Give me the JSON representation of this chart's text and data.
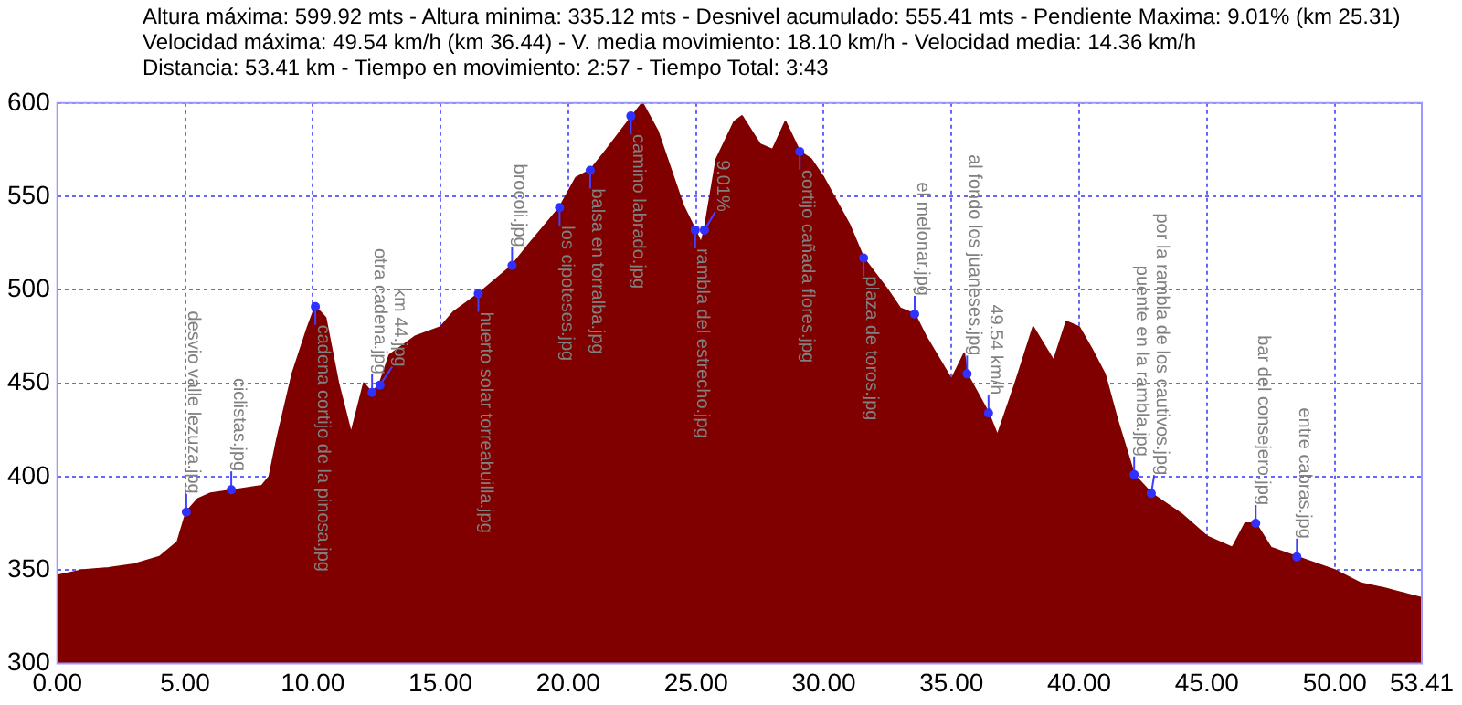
{
  "chart_data": {
    "type": "area",
    "color": "#800000",
    "grid": true,
    "line_style": "dashed",
    "legend": false,
    "marker": "none",
    "xlim": [
      0,
      53.41
    ],
    "ylim": [
      300,
      600
    ],
    "xticks": [
      {
        "value": 0,
        "label": "0.00"
      },
      {
        "value": 5,
        "label": "5.00"
      },
      {
        "value": 10,
        "label": "10.00"
      },
      {
        "value": 15,
        "label": "15.00"
      },
      {
        "value": 20,
        "label": "20.00"
      },
      {
        "value": 25,
        "label": "25.00"
      },
      {
        "value": 30,
        "label": "30.00"
      },
      {
        "value": 35,
        "label": "35.00"
      },
      {
        "value": 40,
        "label": "40.00"
      },
      {
        "value": 45,
        "label": "45.00"
      },
      {
        "value": 50,
        "label": "50.00"
      },
      {
        "value": 53.41,
        "label": "53.41"
      }
    ],
    "yticks": [
      300,
      350,
      400,
      450,
      500,
      550,
      600
    ],
    "x": [
      0,
      1,
      2,
      3,
      4,
      4.7,
      5.05,
      5.5,
      6,
      7,
      8,
      8.3,
      8.6,
      9.2,
      9.8,
      10.1,
      10.5,
      11,
      11.5,
      12,
      12.3,
      12.6,
      13,
      14,
      15,
      15.5,
      16.5,
      17.8,
      18.5,
      19.66,
      20.3,
      20.86,
      21.5,
      22.5,
      22.9,
      23.5,
      24,
      24.5,
      24.97,
      25.2,
      25.33,
      25.8,
      26.5,
      26.8,
      27.5,
      28,
      28.5,
      29.06,
      29.5,
      30,
      31,
      31.56,
      32.5,
      33,
      33.56,
      34,
      35,
      35.5,
      35.61,
      36.45,
      36.8,
      37.5,
      38.2,
      39,
      39.5,
      40,
      40.5,
      41,
      41.5,
      42.15,
      42.82,
      44,
      45,
      46,
      46.5,
      46.91,
      47.5,
      48.52,
      50,
      51,
      52,
      53.41
    ],
    "values": [
      347,
      350,
      351,
      353,
      357,
      365,
      381,
      388,
      391,
      393,
      395,
      400,
      420,
      455,
      480,
      491,
      485,
      450,
      423,
      450,
      445,
      449,
      465,
      475,
      480,
      488,
      498,
      513,
      525,
      544,
      560,
      564,
      575,
      593,
      600,
      585,
      565,
      545,
      532,
      525,
      532,
      570,
      590,
      593,
      578,
      575,
      590,
      574,
      570,
      560,
      535,
      517,
      500,
      490,
      487,
      475,
      452,
      466,
      455,
      434,
      422,
      450,
      480,
      462,
      483,
      480,
      468,
      455,
      430,
      401,
      391,
      380,
      368,
      362,
      375,
      375,
      362,
      357,
      350,
      343,
      340,
      335
    ],
    "annotations": [
      "Altura máxima: 599.92 mts - Altura minima: 335.12 mts - Desnivel acumulado: 555.41 mts - Pendiente Maxima: 9.01% (km 25.31)",
      "Velocidad máxima: 49.54 km/h (km 36.44) - V. media movimiento: 18.10 km/h - Velocidad media: 14.36 km/h",
      "Distancia: 53.41 km - Tiempo en movimiento: 2:57 - Tiempo Total: 3:43",
      {
        "text": "desvio valle lezuza.jpg",
        "x": 5.05,
        "y": 381
      },
      {
        "text": "ciclistas.jpg",
        "x": 6.81,
        "y": 393
      },
      {
        "text": "cadena cortijo de la pinosa.jpg",
        "x": 10.1,
        "y": 491
      },
      {
        "text": "otra cadena.jpg",
        "x": 12.32,
        "y": 445
      },
      {
        "text": "km 44.jpg",
        "x": 12.63,
        "y": 449
      },
      {
        "text": "huerto solar torreabuilla.jpg",
        "x": 16.48,
        "y": 498
      },
      {
        "text": "brocoli.jpg",
        "x": 17.8,
        "y": 513
      },
      {
        "text": "los cipoteses.jpg",
        "x": 19.66,
        "y": 544
      },
      {
        "text": "balsa en torralba.jpg",
        "x": 20.86,
        "y": 564
      },
      {
        "text": "camino labrado.jpg",
        "x": 22.45,
        "y": 593
      },
      {
        "text": "rambla del estrecho.jpg",
        "x": 24.97,
        "y": 532
      },
      {
        "text": "9.01%",
        "x": 25.33,
        "y": 532
      },
      {
        "text": "cortijo cañada flores.jpg",
        "x": 29.06,
        "y": 574
      },
      {
        "text": "plaza de toros.jpg",
        "x": 31.56,
        "y": 517
      },
      {
        "text": "el melonar.jpg",
        "x": 33.56,
        "y": 487
      },
      {
        "text": "al fondo los juaneses.jpg",
        "x": 35.61,
        "y": 455
      },
      {
        "text": "49.54 km/h",
        "x": 36.45,
        "y": 434
      },
      {
        "text": "puente en la rambla.jpg",
        "x": 42.15,
        "y": 401
      },
      {
        "text": "por la rambla de los cautivos.jpg",
        "x": 42.82,
        "y": 391
      },
      {
        "text": "bar del consejero.jpg",
        "x": 46.91,
        "y": 375
      },
      {
        "text": "entre cabras.jpg",
        "x": 48.52,
        "y": 357
      }
    ]
  }
}
